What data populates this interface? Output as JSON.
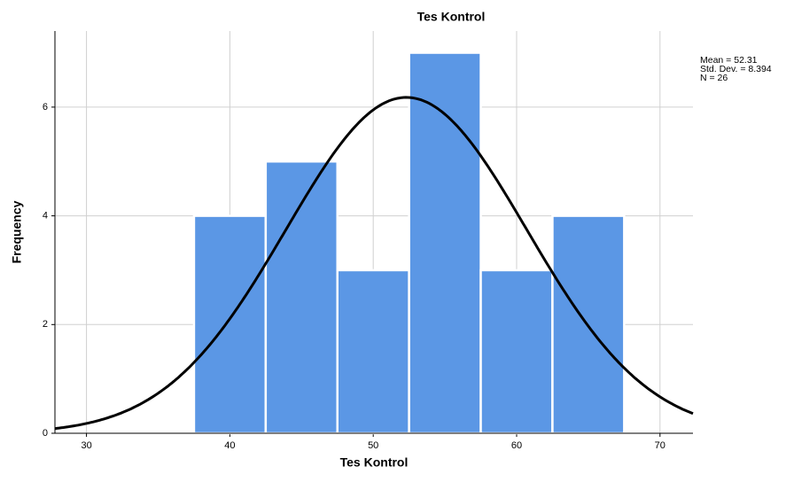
{
  "chart_data": {
    "type": "histogram",
    "title": "Tes Kontrol",
    "x_label": "Tes Kontrol",
    "y_label": "Frequency",
    "bins": [
      37.5,
      42.5,
      47.5,
      52.5,
      57.5,
      62.5,
      67.5
    ],
    "values": [
      4,
      5,
      3,
      7,
      3,
      4
    ],
    "color": "#5b97e5",
    "curve_color": "#000000",
    "xlim": [
      27.8,
      72.3
    ],
    "xticks": [
      30,
      40,
      50,
      60,
      70
    ],
    "ylim": [
      0,
      7.4
    ],
    "yticks": [
      0,
      2,
      4,
      6
    ],
    "grid": true,
    "stats": [
      {
        "value": 52.31,
        "label": "Mean = 52.31"
      },
      {
        "value": 8.394,
        "label": "Std. Dev. = 8.394"
      },
      {
        "value": 26,
        "label": "N = 26"
      }
    ]
  }
}
